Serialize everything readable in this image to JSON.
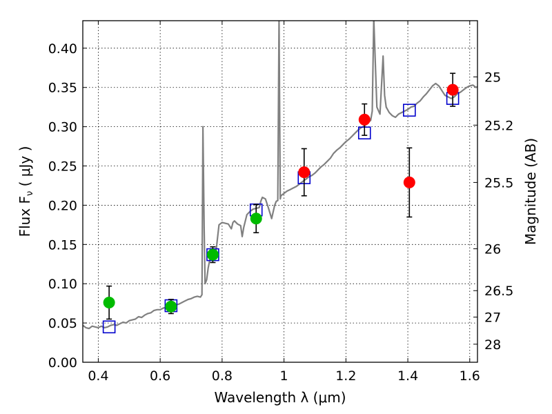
{
  "chart_data": {
    "type": "scatter",
    "xlabel": "Wavelength  λ (μm)",
    "ylabel": "Flux  F",
    "ylabel_sub": "ν",
    "ylabel_unit": "  ( μJy )",
    "y2label": "Magnitude (AB)",
    "xlim": [
      0.35,
      1.625
    ],
    "ylim": [
      0.0,
      0.435
    ],
    "grid": true,
    "x_ticks": [
      {
        "value": 0.4,
        "label": "0.4"
      },
      {
        "value": 0.6,
        "label": "0.6"
      },
      {
        "value": 0.8,
        "label": "0.8"
      },
      {
        "value": 1.0,
        "label": "1"
      },
      {
        "value": 1.2,
        "label": "1.2"
      },
      {
        "value": 1.4,
        "label": "1.4"
      },
      {
        "value": 1.6,
        "label": "1.6"
      }
    ],
    "y_ticks": [
      {
        "value": 0.0,
        "label": "0.00"
      },
      {
        "value": 0.05,
        "label": "0.05"
      },
      {
        "value": 0.1,
        "label": "0.10"
      },
      {
        "value": 0.15,
        "label": "0.15"
      },
      {
        "value": 0.2,
        "label": "0.20"
      },
      {
        "value": 0.25,
        "label": "0.25"
      },
      {
        "value": 0.3,
        "label": "0.30"
      },
      {
        "value": 0.35,
        "label": "0.35"
      },
      {
        "value": 0.4,
        "label": "0.40"
      }
    ],
    "mag_ticks": [
      {
        "flux": 0.3634,
        "label": "25"
      },
      {
        "flux": 0.302,
        "label": "25.2"
      },
      {
        "flux": 0.229,
        "label": "25.5"
      },
      {
        "flux": 0.1445,
        "label": "26"
      },
      {
        "flux": 0.0912,
        "label": "26.5"
      },
      {
        "flux": 0.0575,
        "label": "27"
      },
      {
        "flux": 0.023,
        "label": "28"
      }
    ],
    "series": [
      {
        "type": "line",
        "color": "#808080",
        "points": [
          [
            0.35,
            0.047
          ],
          [
            0.36,
            0.044
          ],
          [
            0.37,
            0.043
          ],
          [
            0.38,
            0.046
          ],
          [
            0.39,
            0.045
          ],
          [
            0.4,
            0.044
          ],
          [
            0.41,
            0.046
          ],
          [
            0.42,
            0.044
          ],
          [
            0.43,
            0.045
          ],
          [
            0.44,
            0.047
          ],
          [
            0.45,
            0.048
          ],
          [
            0.46,
            0.047
          ],
          [
            0.47,
            0.049
          ],
          [
            0.48,
            0.051
          ],
          [
            0.49,
            0.05
          ],
          [
            0.5,
            0.053
          ],
          [
            0.51,
            0.054
          ],
          [
            0.52,
            0.055
          ],
          [
            0.53,
            0.058
          ],
          [
            0.54,
            0.057
          ],
          [
            0.55,
            0.06
          ],
          [
            0.56,
            0.062
          ],
          [
            0.57,
            0.063
          ],
          [
            0.58,
            0.066
          ],
          [
            0.59,
            0.067
          ],
          [
            0.6,
            0.067
          ],
          [
            0.61,
            0.069
          ],
          [
            0.62,
            0.07
          ],
          [
            0.63,
            0.072
          ],
          [
            0.64,
            0.073
          ],
          [
            0.65,
            0.073
          ],
          [
            0.66,
            0.074
          ],
          [
            0.67,
            0.076
          ],
          [
            0.68,
            0.078
          ],
          [
            0.69,
            0.08
          ],
          [
            0.7,
            0.081
          ],
          [
            0.71,
            0.083
          ],
          [
            0.72,
            0.084
          ],
          [
            0.73,
            0.083
          ],
          [
            0.735,
            0.086
          ],
          [
            0.738,
            0.3
          ],
          [
            0.742,
            0.17
          ],
          [
            0.745,
            0.1
          ],
          [
            0.75,
            0.105
          ],
          [
            0.755,
            0.12
          ],
          [
            0.76,
            0.13
          ],
          [
            0.77,
            0.135
          ],
          [
            0.78,
            0.14
          ],
          [
            0.785,
            0.158
          ],
          [
            0.79,
            0.175
          ],
          [
            0.8,
            0.178
          ],
          [
            0.81,
            0.177
          ],
          [
            0.82,
            0.176
          ],
          [
            0.83,
            0.17
          ],
          [
            0.835,
            0.178
          ],
          [
            0.84,
            0.18
          ],
          [
            0.85,
            0.176
          ],
          [
            0.86,
            0.174
          ],
          [
            0.865,
            0.16
          ],
          [
            0.87,
            0.172
          ],
          [
            0.88,
            0.188
          ],
          [
            0.89,
            0.192
          ],
          [
            0.9,
            0.195
          ],
          [
            0.91,
            0.196
          ],
          [
            0.92,
            0.197
          ],
          [
            0.925,
            0.205
          ],
          [
            0.93,
            0.21
          ],
          [
            0.94,
            0.208
          ],
          [
            0.95,
            0.196
          ],
          [
            0.96,
            0.183
          ],
          [
            0.97,
            0.2
          ],
          [
            0.975,
            0.205
          ],
          [
            0.98,
            0.206
          ],
          [
            0.984,
            0.438
          ],
          [
            0.988,
            0.208
          ],
          [
            0.99,
            0.212
          ],
          [
            1.0,
            0.215
          ],
          [
            1.01,
            0.218
          ],
          [
            1.02,
            0.22
          ],
          [
            1.03,
            0.222
          ],
          [
            1.04,
            0.224
          ],
          [
            1.05,
            0.227
          ],
          [
            1.06,
            0.23
          ],
          [
            1.07,
            0.233
          ],
          [
            1.08,
            0.236
          ],
          [
            1.09,
            0.238
          ],
          [
            1.1,
            0.241
          ],
          [
            1.11,
            0.245
          ],
          [
            1.12,
            0.249
          ],
          [
            1.13,
            0.252
          ],
          [
            1.14,
            0.256
          ],
          [
            1.15,
            0.26
          ],
          [
            1.16,
            0.266
          ],
          [
            1.17,
            0.27
          ],
          [
            1.18,
            0.273
          ],
          [
            1.19,
            0.277
          ],
          [
            1.2,
            0.281
          ],
          [
            1.21,
            0.284
          ],
          [
            1.22,
            0.288
          ],
          [
            1.23,
            0.292
          ],
          [
            1.24,
            0.296
          ],
          [
            1.25,
            0.299
          ],
          [
            1.26,
            0.301
          ],
          [
            1.27,
            0.305
          ],
          [
            1.28,
            0.308
          ],
          [
            1.285,
            0.32
          ],
          [
            1.29,
            0.438
          ],
          [
            1.295,
            0.38
          ],
          [
            1.3,
            0.325
          ],
          [
            1.31,
            0.316
          ],
          [
            1.32,
            0.39
          ],
          [
            1.325,
            0.34
          ],
          [
            1.33,
            0.325
          ],
          [
            1.34,
            0.318
          ],
          [
            1.35,
            0.314
          ],
          [
            1.36,
            0.312
          ],
          [
            1.37,
            0.316
          ],
          [
            1.38,
            0.318
          ],
          [
            1.39,
            0.32
          ],
          [
            1.4,
            0.322
          ],
          [
            1.41,
            0.325
          ],
          [
            1.42,
            0.326
          ],
          [
            1.43,
            0.33
          ],
          [
            1.44,
            0.333
          ],
          [
            1.45,
            0.338
          ],
          [
            1.46,
            0.342
          ],
          [
            1.47,
            0.347
          ],
          [
            1.48,
            0.352
          ],
          [
            1.49,
            0.355
          ],
          [
            1.5,
            0.352
          ],
          [
            1.51,
            0.346
          ],
          [
            1.52,
            0.34
          ],
          [
            1.53,
            0.338
          ],
          [
            1.54,
            0.336
          ],
          [
            1.55,
            0.338
          ],
          [
            1.56,
            0.342
          ],
          [
            1.57,
            0.344
          ],
          [
            1.58,
            0.347
          ],
          [
            1.59,
            0.35
          ],
          [
            1.6,
            0.352
          ],
          [
            1.61,
            0.353
          ],
          [
            1.62,
            0.35
          ],
          [
            1.625,
            0.351
          ]
        ]
      },
      {
        "type": "open-square",
        "color": "#0000cc",
        "points": [
          [
            0.435,
            0.045
          ],
          [
            0.635,
            0.072
          ],
          [
            0.77,
            0.137
          ],
          [
            0.91,
            0.194
          ],
          [
            1.065,
            0.235
          ],
          [
            1.26,
            0.292
          ],
          [
            1.405,
            0.321
          ],
          [
            1.545,
            0.336
          ]
        ]
      },
      {
        "type": "filled-circle",
        "color": "#00bb00",
        "points": [
          {
            "x": 0.435,
            "y": 0.076,
            "err": 0.021
          },
          {
            "x": 0.635,
            "y": 0.071,
            "err": 0.009
          },
          {
            "x": 0.77,
            "y": 0.137,
            "err": 0.01
          },
          {
            "x": 0.91,
            "y": 0.183,
            "err": 0.018
          }
        ]
      },
      {
        "type": "filled-circle",
        "color": "#ff0000",
        "points": [
          {
            "x": 1.065,
            "y": 0.242,
            "err": 0.03
          },
          {
            "x": 1.26,
            "y": 0.309,
            "err": 0.02
          },
          {
            "x": 1.405,
            "y": 0.229,
            "err": 0.044
          },
          {
            "x": 1.545,
            "y": 0.347,
            "err": 0.021
          }
        ]
      }
    ]
  }
}
